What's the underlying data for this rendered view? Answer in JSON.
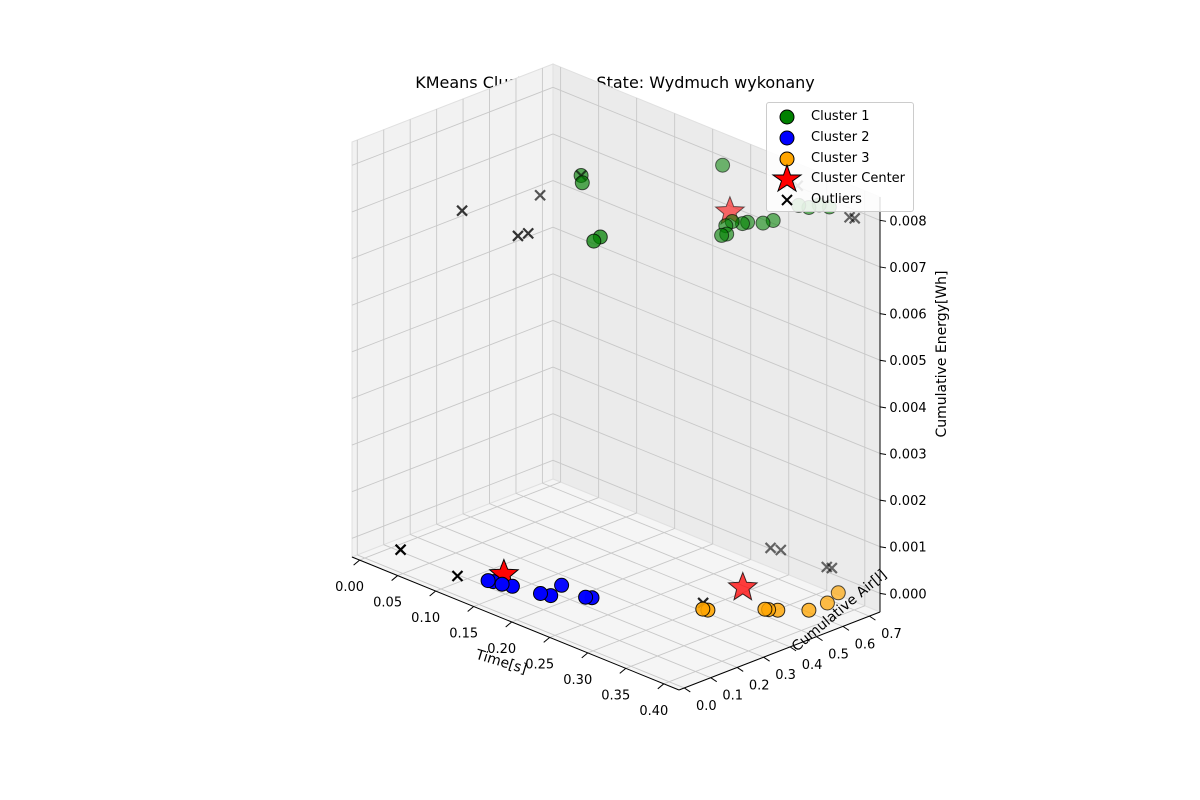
{
  "chart_data": {
    "type": "scatter3d",
    "title": "KMeans Clustering for State: Wydmuch wykonany",
    "xlabel": "Time[s]",
    "ylabel": "Cumulative Air[l]",
    "zlabel": "Cumulative Energy[Wh]",
    "xlim": [
      -0.01,
      0.42
    ],
    "ylim": [
      -0.02,
      0.74
    ],
    "zlim": [
      -0.0004,
      0.0085
    ],
    "x_ticks": [
      "0.00",
      "0.05",
      "0.10",
      "0.15",
      "0.20",
      "0.25",
      "0.30",
      "0.35",
      "0.40"
    ],
    "y_ticks": [
      "0.0",
      "0.1",
      "0.2",
      "0.3",
      "0.4",
      "0.5",
      "0.6",
      "0.7"
    ],
    "z_ticks": [
      "0.000",
      "0.001",
      "0.002",
      "0.003",
      "0.004",
      "0.005",
      "0.006",
      "0.007",
      "0.008"
    ],
    "legend_position": "top-right",
    "grid": true,
    "series": [
      {
        "name": "Cluster 1",
        "marker": "circle",
        "color": "#008000",
        "points": [
          [
            0.1,
            0.53,
            0.0073
          ],
          [
            0.105,
            0.52,
            0.0072
          ],
          [
            0.155,
            0.42,
            0.0065
          ],
          [
            0.16,
            0.43,
            0.0066
          ],
          [
            0.245,
            0.66,
            0.0069
          ],
          [
            0.25,
            0.67,
            0.007
          ],
          [
            0.243,
            0.65,
            0.0067
          ],
          [
            0.248,
            0.655,
            0.00675
          ],
          [
            0.26,
            0.68,
            0.007
          ],
          [
            0.265,
            0.685,
            0.00705
          ],
          [
            0.28,
            0.7,
            0.0071
          ],
          [
            0.29,
            0.71,
            0.0072
          ],
          [
            0.32,
            0.72,
            0.0077
          ],
          [
            0.33,
            0.73,
            0.0077
          ],
          [
            0.34,
            0.74,
            0.0078
          ],
          [
            0.35,
            0.75,
            0.0078
          ],
          [
            0.22,
            0.72,
            0.0079
          ]
        ]
      },
      {
        "name": "Cluster 2",
        "marker": "circle",
        "color": "#0000ff",
        "points": [
          [
            0.155,
            0.02,
            0.0001
          ],
          [
            0.16,
            0.025,
            0.0001
          ],
          [
            0.17,
            0.03,
            0.0001
          ],
          [
            0.18,
            0.04,
            0.0001
          ],
          [
            0.21,
            0.06,
            0.0001
          ],
          [
            0.22,
            0.07,
            0.0001
          ],
          [
            0.245,
            0.13,
            0.0001
          ],
          [
            0.25,
            0.14,
            0.0001
          ],
          [
            0.21,
            0.14,
            0.0001
          ]
        ]
      },
      {
        "name": "Cluster 3",
        "marker": "circle",
        "color": "#ffa500",
        "points": [
          [
            0.34,
            0.3,
            0.0001
          ],
          [
            0.345,
            0.305,
            0.0001
          ],
          [
            0.38,
            0.42,
            0.0001
          ],
          [
            0.383,
            0.425,
            0.0001
          ],
          [
            0.39,
            0.44,
            0.0001
          ],
          [
            0.41,
            0.5,
            0.0001
          ],
          [
            0.41,
            0.57,
            0.0001
          ],
          [
            0.4,
            0.64,
            0.0001
          ]
        ]
      },
      {
        "name": "Cluster Center",
        "marker": "star",
        "color": "#ff0000",
        "points": [
          [
            0.24,
            0.69,
            0.0071
          ],
          [
            0.155,
            0.08,
            0.0001
          ],
          [
            0.33,
            0.48,
            0.0001
          ]
        ]
      },
      {
        "name": "Outliers",
        "marker": "x",
        "color": "#000000",
        "points": [
          [
            0.04,
            0.02,
            0.0
          ],
          [
            0.12,
            0.005,
            0.0
          ],
          [
            0.02,
            0.31,
            0.0065
          ],
          [
            0.09,
            0.32,
            0.0064
          ],
          [
            0.1,
            0.33,
            0.0065
          ],
          [
            0.1,
            0.53,
            0.0073
          ],
          [
            0.06,
            0.49,
            0.0067
          ],
          [
            0.3,
            0.74,
            0.008
          ],
          [
            0.31,
            0.745,
            0.008
          ],
          [
            0.38,
            0.74,
            0.0078
          ],
          [
            0.385,
            0.745,
            0.0078
          ],
          [
            0.33,
            0.33,
            0.0001
          ],
          [
            0.29,
            0.7,
            0.0002
          ],
          [
            0.3,
            0.71,
            0.0002
          ],
          [
            0.35,
            0.74,
            0.0001
          ],
          [
            0.355,
            0.745,
            0.0001
          ]
        ]
      }
    ]
  }
}
